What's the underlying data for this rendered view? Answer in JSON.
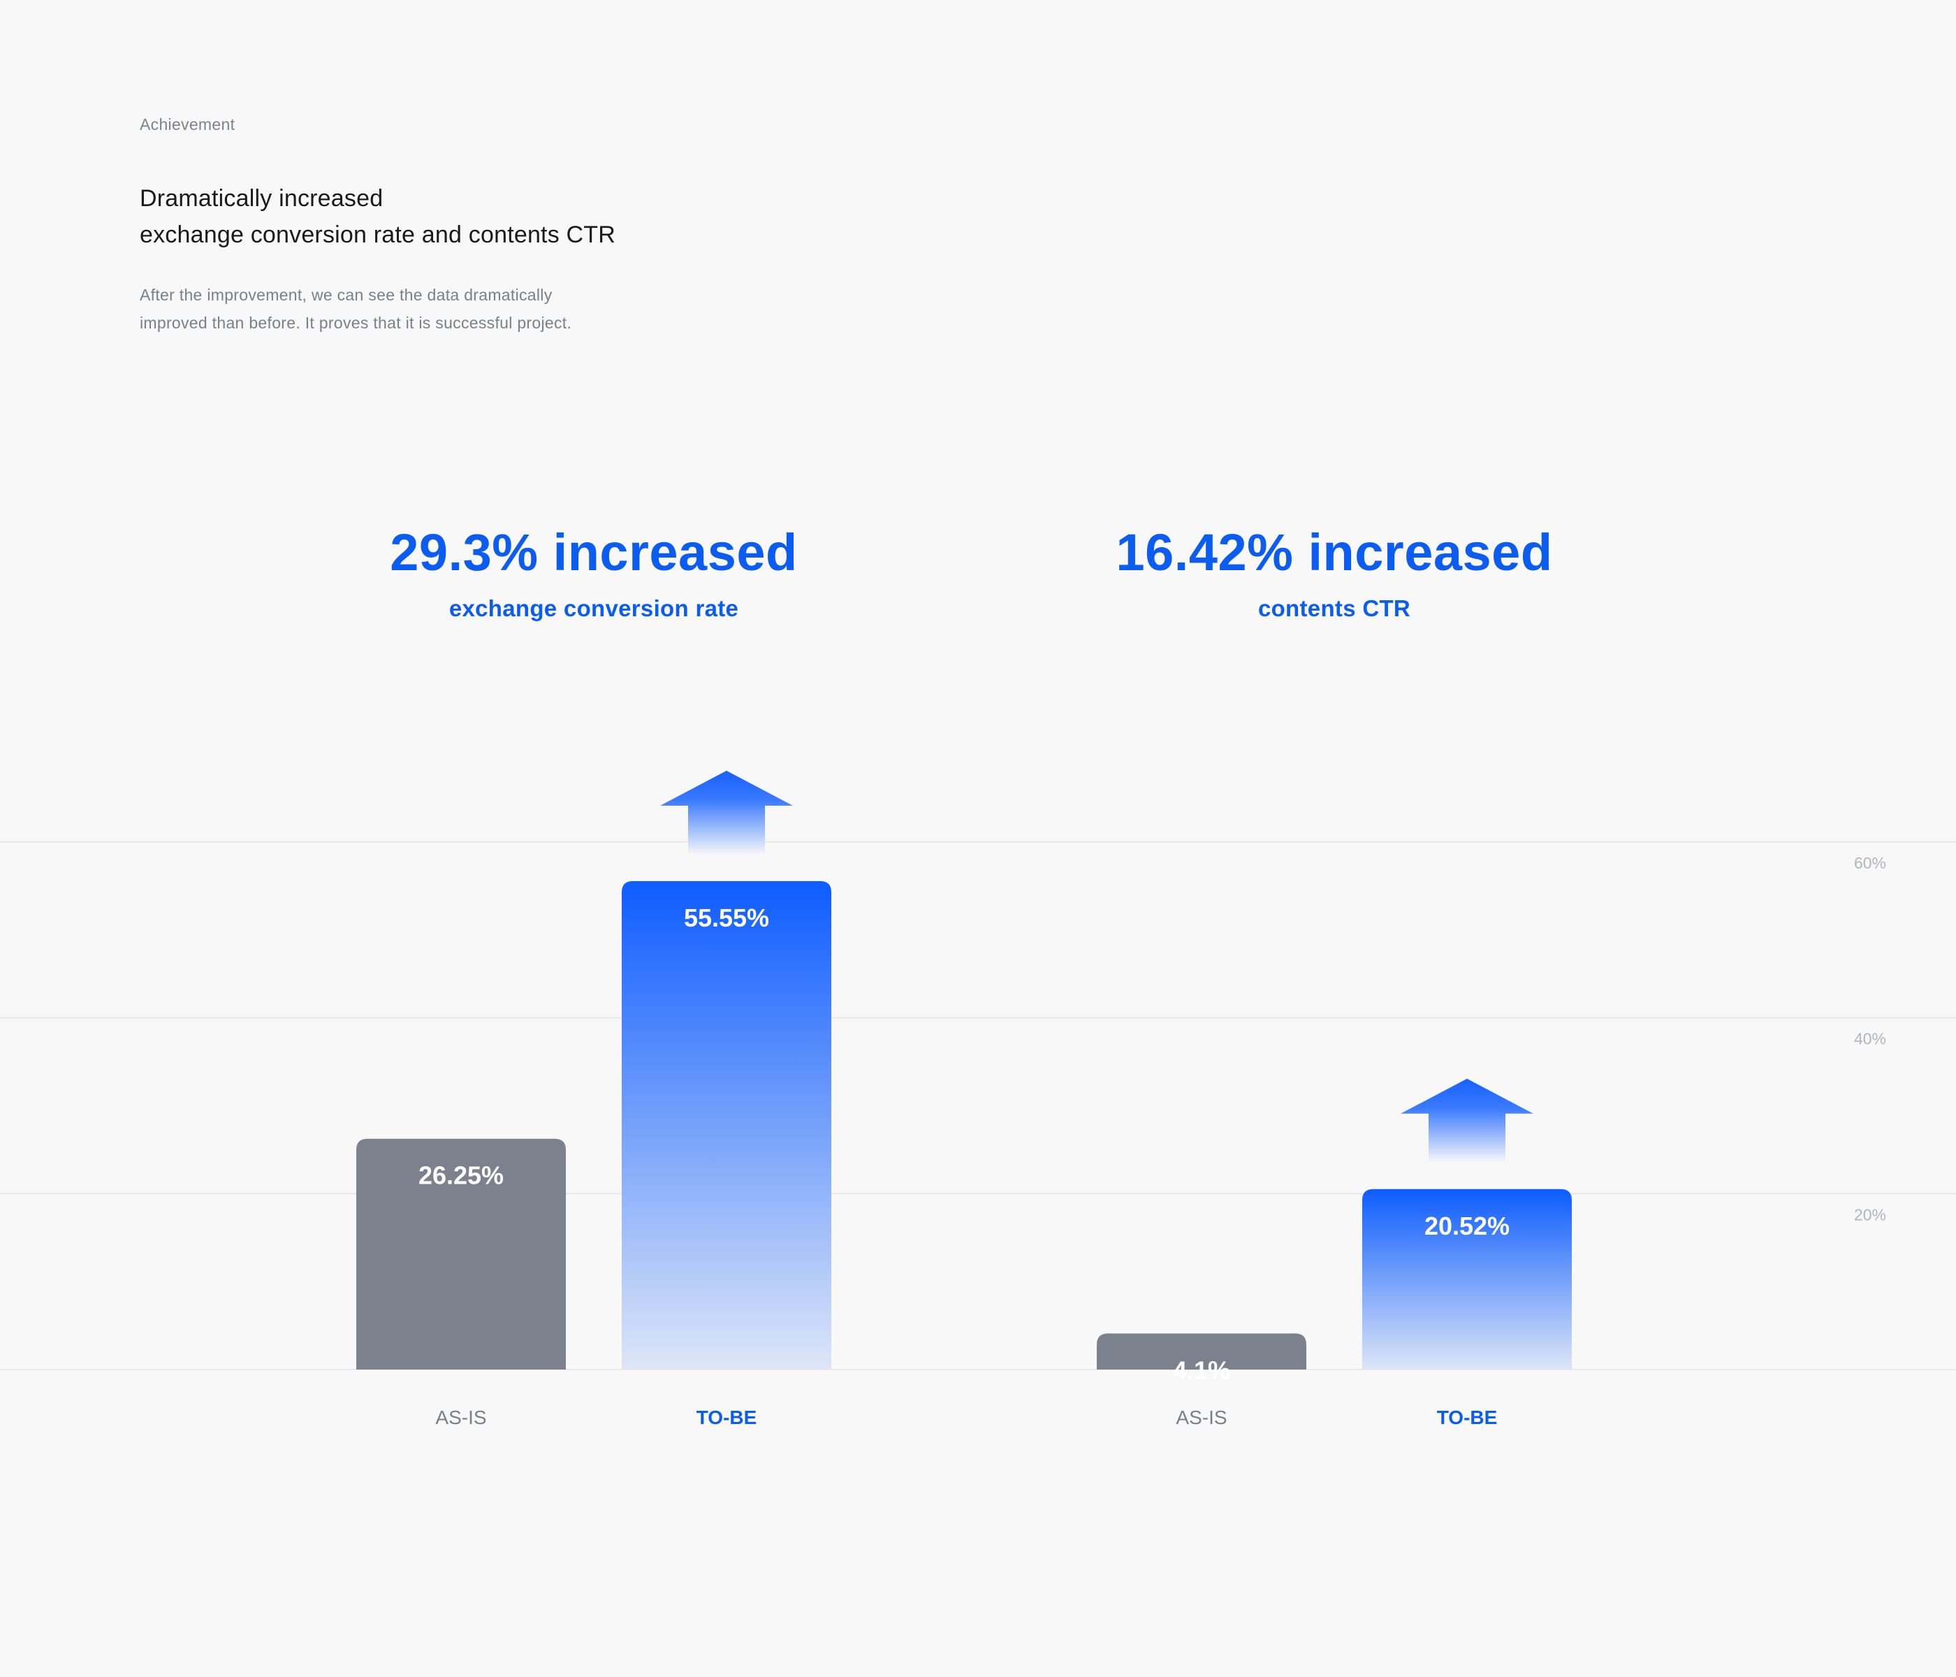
{
  "header": {
    "eyebrow": "Achievement",
    "headline_lines": [
      "Dramatically increased",
      "exchange conversion rate and contents CTR"
    ],
    "description_lines": [
      "After the improvement, we can see the data dramatically",
      "improved than before. It proves that it is successful project."
    ]
  },
  "kpis": [
    {
      "value": "29.3% increased",
      "label": "exchange conversion rate"
    },
    {
      "value": "16.42% increased",
      "label": "contents CTR"
    }
  ],
  "colors": {
    "accent": "#0b5cf0",
    "as_is_bar": "#7b828e",
    "gridline": "#e8e8e8",
    "axis_text": "#b2b5ba",
    "category_as_is": "#7a7f89"
  },
  "chart_data": {
    "type": "bar",
    "ylim": [
      0,
      60
    ],
    "yticks": [
      20,
      40,
      60
    ],
    "ytick_labels": [
      "20%",
      "40%",
      "60%"
    ],
    "grid": true,
    "groups": [
      {
        "metric": "exchange conversion rate",
        "categories": [
          "AS-IS",
          "TO-BE"
        ],
        "values": [
          26.25,
          55.55
        ],
        "value_labels": [
          "26.25%",
          "55.55%"
        ]
      },
      {
        "metric": "contents CTR",
        "categories": [
          "AS-IS",
          "TO-BE"
        ],
        "values": [
          4.1,
          20.52
        ],
        "value_labels": [
          "4.1%",
          "20.52%"
        ]
      }
    ]
  }
}
